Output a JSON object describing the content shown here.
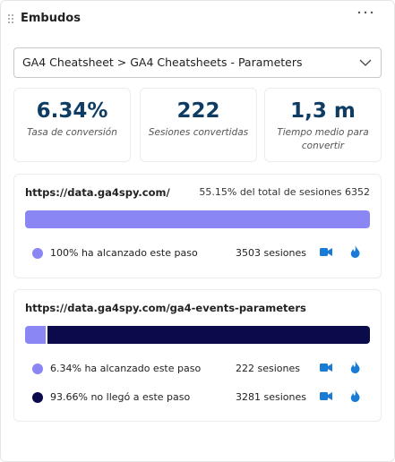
{
  "header": {
    "title": "Embudos"
  },
  "dropdown": {
    "label": "GA4 Cheatsheet > GA4 Cheatsheets - Parameters"
  },
  "kpis": [
    {
      "value": "6.34%",
      "label": "Tasa de conversión"
    },
    {
      "value": "222",
      "label": "Sesiones convertidas"
    },
    {
      "value": "1,3 m",
      "label": "Tiempo medio para convertir"
    }
  ],
  "steps": [
    {
      "url": "https://data.ga4spy.com/",
      "summary": "55.15% del total de sesiones 6352",
      "bar": [
        {
          "value": 100,
          "color": "#8a86f4"
        }
      ],
      "rows": [
        {
          "text": "100% ha alcanzado este paso",
          "sessions": "3503 sesiones",
          "color": "#8a86f4"
        }
      ]
    },
    {
      "url": "https://data.ga4spy.com/ga4-events-parameters",
      "summary": null,
      "bar": [
        {
          "value": 6.34,
          "color": "#8a86f4"
        },
        {
          "value": 93.66,
          "color": "#0b0a4a"
        }
      ],
      "rows": [
        {
          "text": "6.34% ha alcanzado este paso",
          "sessions": "222 sesiones",
          "color": "#8a86f4"
        },
        {
          "text": "93.66% no llegó a este paso",
          "sessions": "3281 sesiones",
          "color": "#0b0a4a"
        }
      ]
    }
  ]
}
